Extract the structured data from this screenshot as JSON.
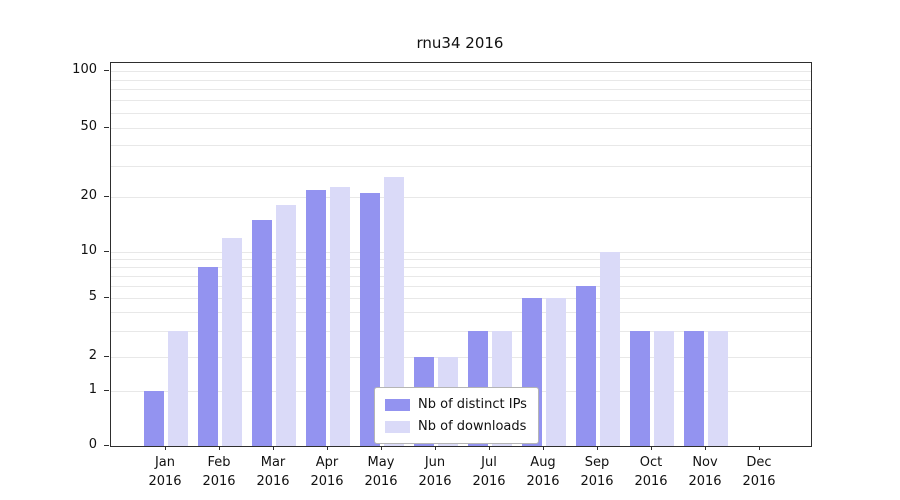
{
  "chart_data": {
    "type": "bar",
    "title": "rnu34 2016",
    "categories": [
      "Jan",
      "Feb",
      "Mar",
      "Apr",
      "May",
      "Jun",
      "Jul",
      "Aug",
      "Sep",
      "Oct",
      "Nov",
      "Dec"
    ],
    "year": "2016",
    "series": [
      {
        "name": "Nb of distinct IPs",
        "color": "#9393f0",
        "values": [
          1,
          8,
          15,
          22,
          21,
          2,
          3,
          5,
          6,
          3,
          3,
          0
        ]
      },
      {
        "name": "Nb of downloads",
        "color": "#dadaf8",
        "values": [
          3,
          12,
          18,
          23,
          26,
          2,
          3,
          5,
          10,
          3,
          3,
          0
        ]
      }
    ],
    "xlabel": "",
    "ylabel": "",
    "yscale": "symlog",
    "ylim": [
      0,
      100
    ],
    "yticks": [
      0,
      1,
      2,
      5,
      10,
      20,
      50,
      100
    ],
    "grid": "horizontal",
    "legend_position": "inside lower center"
  }
}
